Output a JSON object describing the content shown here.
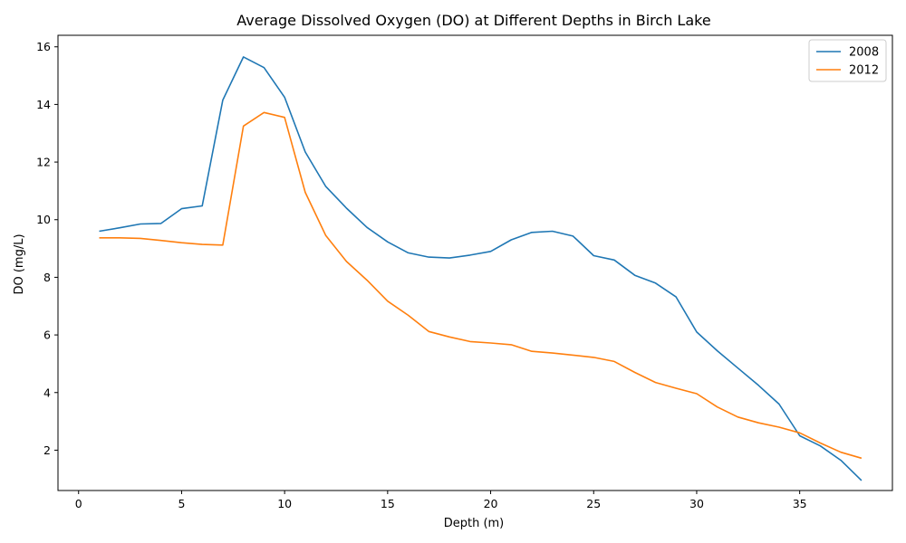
{
  "chart_data": {
    "type": "line",
    "title": "Average Dissolved Oxygen (DO) at Different Depths in Birch Lake",
    "xlabel": "Depth (m)",
    "ylabel": "DO (mg/L)",
    "xlim": [
      -1,
      39.5
    ],
    "ylim": [
      0.6,
      16.4
    ],
    "xticks": [
      0,
      5,
      10,
      15,
      20,
      25,
      30,
      35
    ],
    "yticks": [
      2,
      4,
      6,
      8,
      10,
      12,
      14,
      16
    ],
    "grid": false,
    "legend_position": "upper right",
    "series": [
      {
        "name": "2008",
        "color": "#1f77b4",
        "x": [
          1,
          2,
          3,
          4,
          5,
          6,
          7,
          8,
          9,
          10,
          11,
          12,
          13,
          14,
          15,
          16,
          17,
          18,
          19,
          20,
          21,
          22,
          23,
          24,
          25,
          26,
          27,
          28,
          29,
          30,
          31,
          32,
          33,
          34,
          35,
          36,
          37,
          38
        ],
        "values": [
          9.6,
          9.72,
          9.85,
          9.87,
          10.38,
          10.48,
          14.15,
          15.65,
          15.28,
          14.25,
          12.35,
          11.15,
          10.4,
          9.73,
          9.23,
          8.85,
          8.7,
          8.67,
          8.77,
          8.9,
          9.3,
          9.56,
          9.6,
          9.43,
          8.75,
          8.6,
          8.07,
          7.8,
          7.32,
          6.1,
          5.45,
          4.85,
          4.25,
          3.6,
          2.5,
          2.15,
          1.65,
          0.95
        ]
      },
      {
        "name": "2012",
        "color": "#ff7f0e",
        "x": [
          1,
          2,
          3,
          4,
          5,
          6,
          7,
          8,
          9,
          10,
          11,
          12,
          13,
          14,
          15,
          16,
          17,
          18,
          19,
          20,
          21,
          22,
          23,
          24,
          25,
          26,
          27,
          28,
          29,
          30,
          31,
          32,
          33,
          34,
          35,
          36,
          37,
          38
        ],
        "values": [
          9.37,
          9.37,
          9.35,
          9.28,
          9.2,
          9.14,
          9.12,
          13.25,
          13.72,
          13.55,
          10.95,
          9.45,
          8.55,
          7.9,
          7.17,
          6.68,
          6.12,
          5.93,
          5.77,
          5.72,
          5.66,
          5.43,
          5.37,
          5.3,
          5.22,
          5.08,
          4.7,
          4.35,
          4.15,
          3.96,
          3.5,
          3.15,
          2.95,
          2.8,
          2.6,
          2.25,
          1.93,
          1.72
        ]
      }
    ]
  }
}
